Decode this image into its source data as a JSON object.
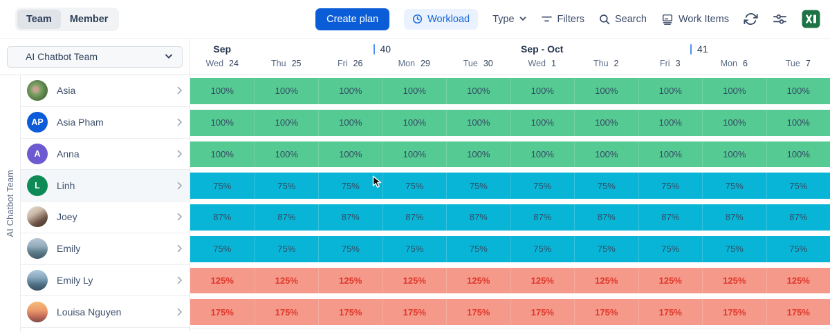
{
  "toolbar": {
    "view_options": [
      {
        "label": "Team",
        "active": true
      },
      {
        "label": "Member",
        "active": false
      }
    ],
    "create_plan": "Create plan",
    "workload": "Workload",
    "type": "Type",
    "filters": "Filters",
    "search": "Search",
    "work_items": "Work Items",
    "icons": [
      "refresh-icon",
      "sliders-icon",
      "excel-export-icon"
    ]
  },
  "sidebar": {
    "team_selector_value": "AI Chatbot Team",
    "group_label": "AI Chatbot Team"
  },
  "timeline_header": {
    "groups": [
      {
        "month": "Sep",
        "col": 0
      },
      {
        "week": "40",
        "col": 3
      },
      {
        "month": "Sep - Oct",
        "col": 5
      },
      {
        "week": "41",
        "col": 8
      }
    ],
    "days": [
      {
        "name": "Wed",
        "date": "24"
      },
      {
        "name": "Thu",
        "date": "25"
      },
      {
        "name": "Fri",
        "date": "26"
      },
      {
        "name": "Mon",
        "date": "29"
      },
      {
        "name": "Tue",
        "date": "30"
      },
      {
        "name": "Wed",
        "date": "1"
      },
      {
        "name": "Thu",
        "date": "2"
      },
      {
        "name": "Fri",
        "date": "3"
      },
      {
        "name": "Mon",
        "date": "6"
      },
      {
        "name": "Tue",
        "date": "7"
      }
    ]
  },
  "members": [
    {
      "name": "Asia",
      "avatar": {
        "kind": "photo",
        "style": "foliage"
      },
      "level": "full",
      "highlighted": false,
      "values": [
        "100%",
        "100%",
        "100%",
        "100%",
        "100%",
        "100%",
        "100%",
        "100%",
        "100%",
        "100%"
      ]
    },
    {
      "name": "Asia Pham",
      "avatar": {
        "kind": "initials",
        "text": "AP",
        "color": "#0c5bd8"
      },
      "level": "full",
      "highlighted": false,
      "values": [
        "100%",
        "100%",
        "100%",
        "100%",
        "100%",
        "100%",
        "100%",
        "100%",
        "100%",
        "100%"
      ]
    },
    {
      "name": "Anna",
      "avatar": {
        "kind": "initials",
        "text": "A",
        "color": "#6e5ad0"
      },
      "level": "full",
      "highlighted": false,
      "values": [
        "100%",
        "100%",
        "100%",
        "100%",
        "100%",
        "100%",
        "100%",
        "100%",
        "100%",
        "100%"
      ]
    },
    {
      "name": "Linh",
      "avatar": {
        "kind": "initials",
        "text": "L",
        "color": "#0e8a56"
      },
      "level": "under",
      "highlighted": true,
      "values": [
        "75%",
        "75%",
        "75%",
        "75%",
        "75%",
        "75%",
        "75%",
        "75%",
        "75%",
        "75%"
      ]
    },
    {
      "name": "Joey",
      "avatar": {
        "kind": "photo",
        "style": "portrait"
      },
      "level": "under",
      "highlighted": false,
      "values": [
        "87%",
        "87%",
        "87%",
        "87%",
        "87%",
        "87%",
        "87%",
        "87%",
        "87%",
        "87%"
      ]
    },
    {
      "name": "Emily",
      "avatar": {
        "kind": "photo",
        "style": "mountain"
      },
      "level": "under",
      "highlighted": false,
      "values": [
        "75%",
        "75%",
        "75%",
        "75%",
        "75%",
        "75%",
        "75%",
        "75%",
        "75%",
        "75%"
      ]
    },
    {
      "name": "Emily Ly",
      "avatar": {
        "kind": "photo",
        "style": "mountain2"
      },
      "level": "over",
      "highlighted": false,
      "values": [
        "125%",
        "125%",
        "125%",
        "125%",
        "125%",
        "125%",
        "125%",
        "125%",
        "125%",
        "125%"
      ]
    },
    {
      "name": "Louisa Nguyen",
      "avatar": {
        "kind": "photo",
        "style": "sunset"
      },
      "level": "over",
      "highlighted": false,
      "values": [
        "175%",
        "175%",
        "175%",
        "175%",
        "175%",
        "175%",
        "175%",
        "175%",
        "175%",
        "175%"
      ]
    }
  ],
  "colors": {
    "band_full": "#55ca93",
    "band_under": "#09b5d6",
    "band_over": "#f59a8b",
    "over_text": "#df382b",
    "cell_text": "#344a63",
    "accent_blue": "#0b5dd7",
    "workload_pill_bg": "#e9f2fe",
    "week_marker_blue": "#4a90f5",
    "excel_green": "#1d7346"
  }
}
